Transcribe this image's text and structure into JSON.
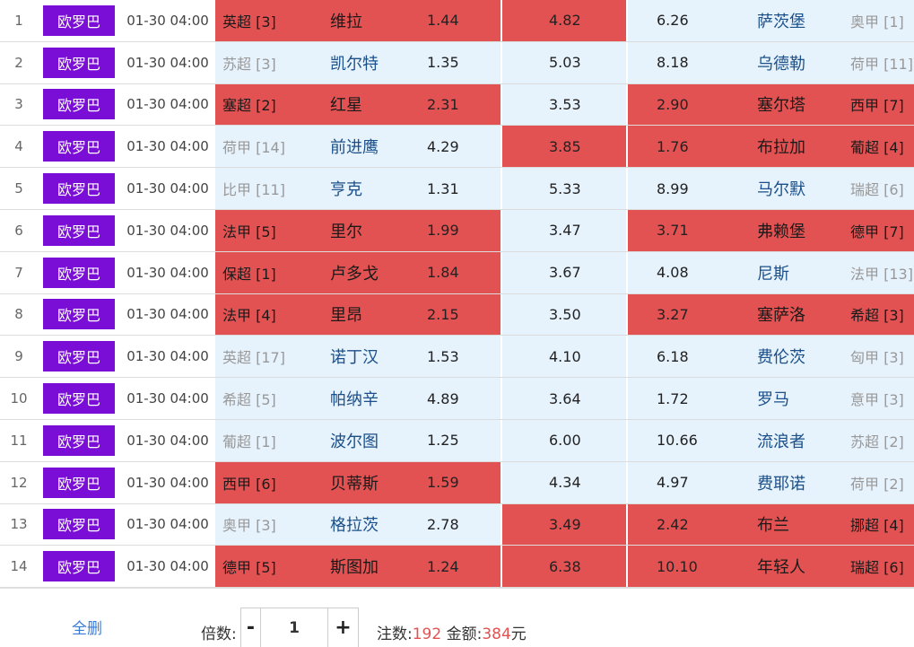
{
  "rows": [
    {
      "no": "1",
      "league": "欧罗巴",
      "time": "01-30 04:00",
      "home_rank": "英超 [3]",
      "home": "维拉",
      "odd_h": "1.44",
      "odd_d": "4.82",
      "odd_a": "6.26",
      "away": "萨茨堡",
      "away_rank": "奥甲 [1]",
      "sel": [
        true,
        true,
        false
      ]
    },
    {
      "no": "2",
      "league": "欧罗巴",
      "time": "01-30 04:00",
      "home_rank": "苏超 [3]",
      "home": "凯尔特",
      "odd_h": "1.35",
      "odd_d": "5.03",
      "odd_a": "8.18",
      "away": "乌德勒",
      "away_rank": "荷甲 [11]",
      "sel": [
        false,
        false,
        false
      ]
    },
    {
      "no": "3",
      "league": "欧罗巴",
      "time": "01-30 04:00",
      "home_rank": "塞超 [2]",
      "home": "红星",
      "odd_h": "2.31",
      "odd_d": "3.53",
      "odd_a": "2.90",
      "away": "塞尔塔",
      "away_rank": "西甲 [7]",
      "sel": [
        true,
        false,
        true
      ]
    },
    {
      "no": "4",
      "league": "欧罗巴",
      "time": "01-30 04:00",
      "home_rank": "荷甲 [14]",
      "home": "前进鹰",
      "odd_h": "4.29",
      "odd_d": "3.85",
      "odd_a": "1.76",
      "away": "布拉加",
      "away_rank": "葡超 [4]",
      "sel": [
        false,
        true,
        true
      ]
    },
    {
      "no": "5",
      "league": "欧罗巴",
      "time": "01-30 04:00",
      "home_rank": "比甲 [11]",
      "home": "亨克",
      "odd_h": "1.31",
      "odd_d": "5.33",
      "odd_a": "8.99",
      "away": "马尔默",
      "away_rank": "瑞超 [6]",
      "sel": [
        false,
        false,
        false
      ]
    },
    {
      "no": "6",
      "league": "欧罗巴",
      "time": "01-30 04:00",
      "home_rank": "法甲 [5]",
      "home": "里尔",
      "odd_h": "1.99",
      "odd_d": "3.47",
      "odd_a": "3.71",
      "away": "弗赖堡",
      "away_rank": "德甲 [7]",
      "sel": [
        true,
        false,
        true
      ]
    },
    {
      "no": "7",
      "league": "欧罗巴",
      "time": "01-30 04:00",
      "home_rank": "保超 [1]",
      "home": "卢多戈",
      "odd_h": "1.84",
      "odd_d": "3.67",
      "odd_a": "4.08",
      "away": "尼斯",
      "away_rank": "法甲 [13]",
      "sel": [
        true,
        false,
        false
      ]
    },
    {
      "no": "8",
      "league": "欧罗巴",
      "time": "01-30 04:00",
      "home_rank": "法甲 [4]",
      "home": "里昂",
      "odd_h": "2.15",
      "odd_d": "3.50",
      "odd_a": "3.27",
      "away": "塞萨洛",
      "away_rank": "希超 [3]",
      "sel": [
        true,
        false,
        true
      ]
    },
    {
      "no": "9",
      "league": "欧罗巴",
      "time": "01-30 04:00",
      "home_rank": "英超 [17]",
      "home": "诺丁汉",
      "odd_h": "1.53",
      "odd_d": "4.10",
      "odd_a": "6.18",
      "away": "费伦茨",
      "away_rank": "匈甲 [3]",
      "sel": [
        false,
        false,
        false
      ]
    },
    {
      "no": "10",
      "league": "欧罗巴",
      "time": "01-30 04:00",
      "home_rank": "希超 [5]",
      "home": "帕纳辛",
      "odd_h": "4.89",
      "odd_d": "3.64",
      "odd_a": "1.72",
      "away": "罗马",
      "away_rank": "意甲 [3]",
      "sel": [
        false,
        false,
        false
      ]
    },
    {
      "no": "11",
      "league": "欧罗巴",
      "time": "01-30 04:00",
      "home_rank": "葡超 [1]",
      "home": "波尔图",
      "odd_h": "1.25",
      "odd_d": "6.00",
      "odd_a": "10.66",
      "away": "流浪者",
      "away_rank": "苏超 [2]",
      "sel": [
        false,
        false,
        false
      ]
    },
    {
      "no": "12",
      "league": "欧罗巴",
      "time": "01-30 04:00",
      "home_rank": "西甲 [6]",
      "home": "贝蒂斯",
      "odd_h": "1.59",
      "odd_d": "4.34",
      "odd_a": "4.97",
      "away": "费耶诺",
      "away_rank": "荷甲 [2]",
      "sel": [
        true,
        false,
        false
      ]
    },
    {
      "no": "13",
      "league": "欧罗巴",
      "time": "01-30 04:00",
      "home_rank": "奥甲 [3]",
      "home": "格拉茨",
      "odd_h": "2.78",
      "odd_d": "3.49",
      "odd_a": "2.42",
      "away": "布兰",
      "away_rank": "挪超 [4]",
      "sel": [
        false,
        true,
        true
      ]
    },
    {
      "no": "14",
      "league": "欧罗巴",
      "time": "01-30 04:00",
      "home_rank": "德甲 [5]",
      "home": "斯图加",
      "odd_h": "1.24",
      "odd_d": "6.38",
      "odd_a": "10.10",
      "away": "年轻人",
      "away_rank": "瑞超 [6]",
      "sel": [
        true,
        true,
        true
      ]
    }
  ],
  "footer": {
    "clear_all": "全删",
    "multiplier_label": "倍数:",
    "minus": "-",
    "multiplier_value": "1",
    "plus": "+",
    "bets_label": "注数:",
    "bets_value": "192",
    "amount_label": "金额:",
    "amount_value": "384",
    "amount_unit": "元"
  },
  "colors": {
    "league_badge": "#7a0ed6",
    "selected": "#e35252",
    "unselected": "#e6f2fc"
  }
}
